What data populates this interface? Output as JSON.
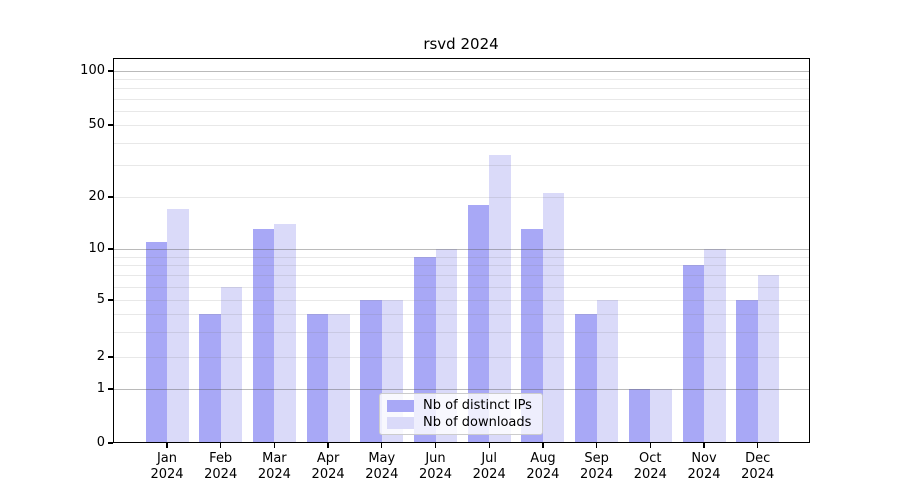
{
  "figure": {
    "background": "#ffffff"
  },
  "chart_data": {
    "type": "bar",
    "title": "rsvd 2024",
    "yscale": "symlog",
    "ylim": [
      0,
      100
    ],
    "grid": true,
    "legend_position": "lower center",
    "y_ticks": [
      0,
      1,
      2,
      5,
      10,
      20,
      50,
      100
    ],
    "x": [
      "Jan",
      "Feb",
      "Mar",
      "Apr",
      "May",
      "Jun",
      "Jul",
      "Aug",
      "Sep",
      "Oct",
      "Nov",
      "Dec"
    ],
    "x_year": "2024",
    "series": [
      {
        "name": "Nb of distinct IPs",
        "color": "#a8a8f6",
        "values": [
          11,
          4,
          13,
          4,
          5,
          9,
          18,
          13,
          4,
          1,
          8,
          5
        ]
      },
      {
        "name": "Nb of downloads",
        "color": "#dadaf9",
        "values": [
          17,
          6,
          14,
          4,
          5,
          10,
          34,
          21,
          5,
          1,
          10,
          7
        ]
      }
    ]
  }
}
